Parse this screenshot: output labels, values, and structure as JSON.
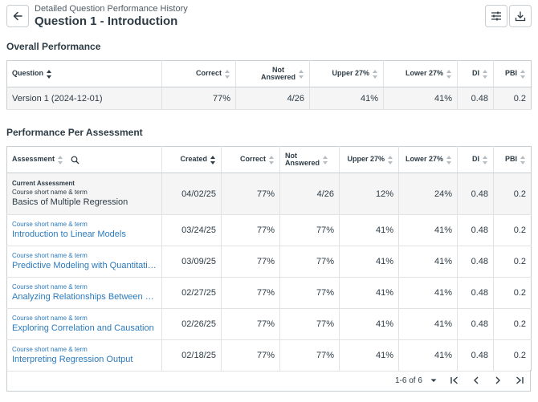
{
  "header": {
    "subtitle": "Detailed Question Performance History",
    "title": "Question 1 - Introduction"
  },
  "overall": {
    "section_title": "Overall Performance",
    "columns": {
      "question": "Question",
      "correct": "Correct",
      "not_answered_1": "Not",
      "not_answered_2": "Answered",
      "upper": "Upper 27%",
      "lower": "Lower 27%",
      "di": "DI",
      "pbi": "PBI"
    },
    "row": {
      "question": "Version 1 (2024-12-01)",
      "correct": "77%",
      "not_answered": "4/26",
      "upper": "41%",
      "lower": "41%",
      "di": "0.48",
      "pbi": "0.2"
    }
  },
  "per_assessment": {
    "section_title": "Performance Per Assessment",
    "columns": {
      "assessment": "Assessment",
      "created": "Created",
      "correct": "Correct",
      "not_answered_1": "Not",
      "not_answered_2": "Answered",
      "upper": "Upper 27%",
      "lower": "Lower 27%",
      "di": "DI",
      "pbi": "PBI"
    },
    "current_label": "Current Assessment",
    "rows": [
      {
        "course": "Course short name & term",
        "name": "Basics of Multiple Regression",
        "created": "04/02/25",
        "correct": "77%",
        "not_answered": "4/26",
        "upper": "12%",
        "lower": "24%",
        "di": "0.48",
        "pbi": "0.2"
      },
      {
        "course": "Course short name & term",
        "name": "Introduction to Linear Models",
        "created": "03/24/25",
        "correct": "77%",
        "not_answered": "77%",
        "upper": "41%",
        "lower": "41%",
        "di": "0.48",
        "pbi": "0.2"
      },
      {
        "course": "Course short name & term",
        "name": "Predictive Modeling with Quantitati…",
        "created": "03/09/25",
        "correct": "77%",
        "not_answered": "77%",
        "upper": "41%",
        "lower": "41%",
        "di": "0.48",
        "pbi": "0.2"
      },
      {
        "course": "Course short name & term",
        "name": "Analyzing Relationships Between V…",
        "created": "02/27/25",
        "correct": "77%",
        "not_answered": "77%",
        "upper": "41%",
        "lower": "41%",
        "di": "0.48",
        "pbi": "0.2"
      },
      {
        "course": "Course short name & term",
        "name": "Exploring Correlation and Causation",
        "created": "02/26/25",
        "correct": "77%",
        "not_answered": "77%",
        "upper": "41%",
        "lower": "41%",
        "di": "0.48",
        "pbi": "0.2"
      },
      {
        "course": "Course short name & term",
        "name": "Interpreting Regression Output",
        "created": "02/18/25",
        "correct": "77%",
        "not_answered": "77%",
        "upper": "41%",
        "lower": "41%",
        "di": "0.48",
        "pbi": "0.2"
      }
    ]
  },
  "pagination": {
    "range": "1-6 of 6"
  },
  "colors": {
    "link": "#2b7abc",
    "text": "#2d3b45",
    "border": "#c7cdd1",
    "row_gray": "#f5f5f5"
  },
  "icons": [
    "arrow-left-icon",
    "filter-sliders-icon",
    "download-icon",
    "search-icon",
    "sort-icon",
    "chevron-down-icon",
    "first-page-icon",
    "prev-page-icon",
    "next-page-icon",
    "last-page-icon"
  ]
}
